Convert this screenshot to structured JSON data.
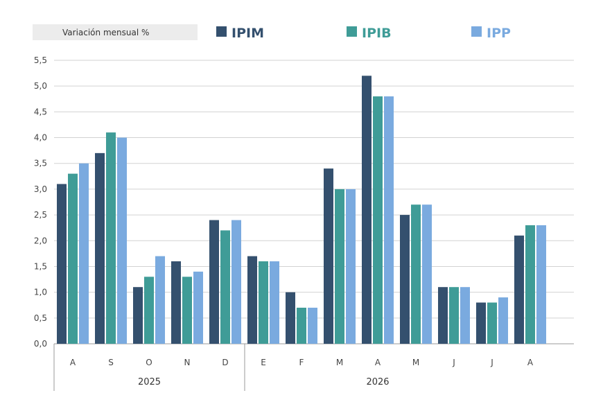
{
  "chart_data": {
    "type": "bar",
    "title": "Variación mensual %",
    "categories": [
      "A",
      "S",
      "O",
      "N",
      "D",
      "E",
      "F",
      "M",
      "A",
      "M",
      "J",
      "J",
      "A"
    ],
    "groups": [
      {
        "label": "2025",
        "start": 0,
        "end": 4
      },
      {
        "label": "2026",
        "start": 5,
        "end": 12
      }
    ],
    "series": [
      {
        "name": "IPIM",
        "color": "#34506e",
        "values": [
          3.1,
          3.7,
          1.1,
          1.6,
          2.4,
          1.7,
          1.0,
          3.4,
          5.2,
          2.5,
          1.1,
          0.8,
          2.1
        ]
      },
      {
        "name": "IPIB",
        "color": "#3f9c97",
        "values": [
          3.3,
          4.1,
          1.3,
          1.3,
          2.2,
          1.6,
          0.7,
          3.0,
          4.8,
          2.7,
          1.1,
          0.8,
          2.3
        ]
      },
      {
        "name": "IPP",
        "color": "#7aaadf",
        "values": [
          3.5,
          4.0,
          1.7,
          1.4,
          2.4,
          1.6,
          0.7,
          3.0,
          4.8,
          2.7,
          1.1,
          0.9,
          2.3
        ]
      }
    ],
    "ylim": [
      0,
      5.5
    ],
    "yticks": [
      "0,0",
      "0,5",
      "1,0",
      "1,5",
      "2,0",
      "2,5",
      "3,0",
      "3,5",
      "4,0",
      "4,5",
      "5,0",
      "5,5"
    ],
    "grid": true,
    "legend_position": "top"
  }
}
